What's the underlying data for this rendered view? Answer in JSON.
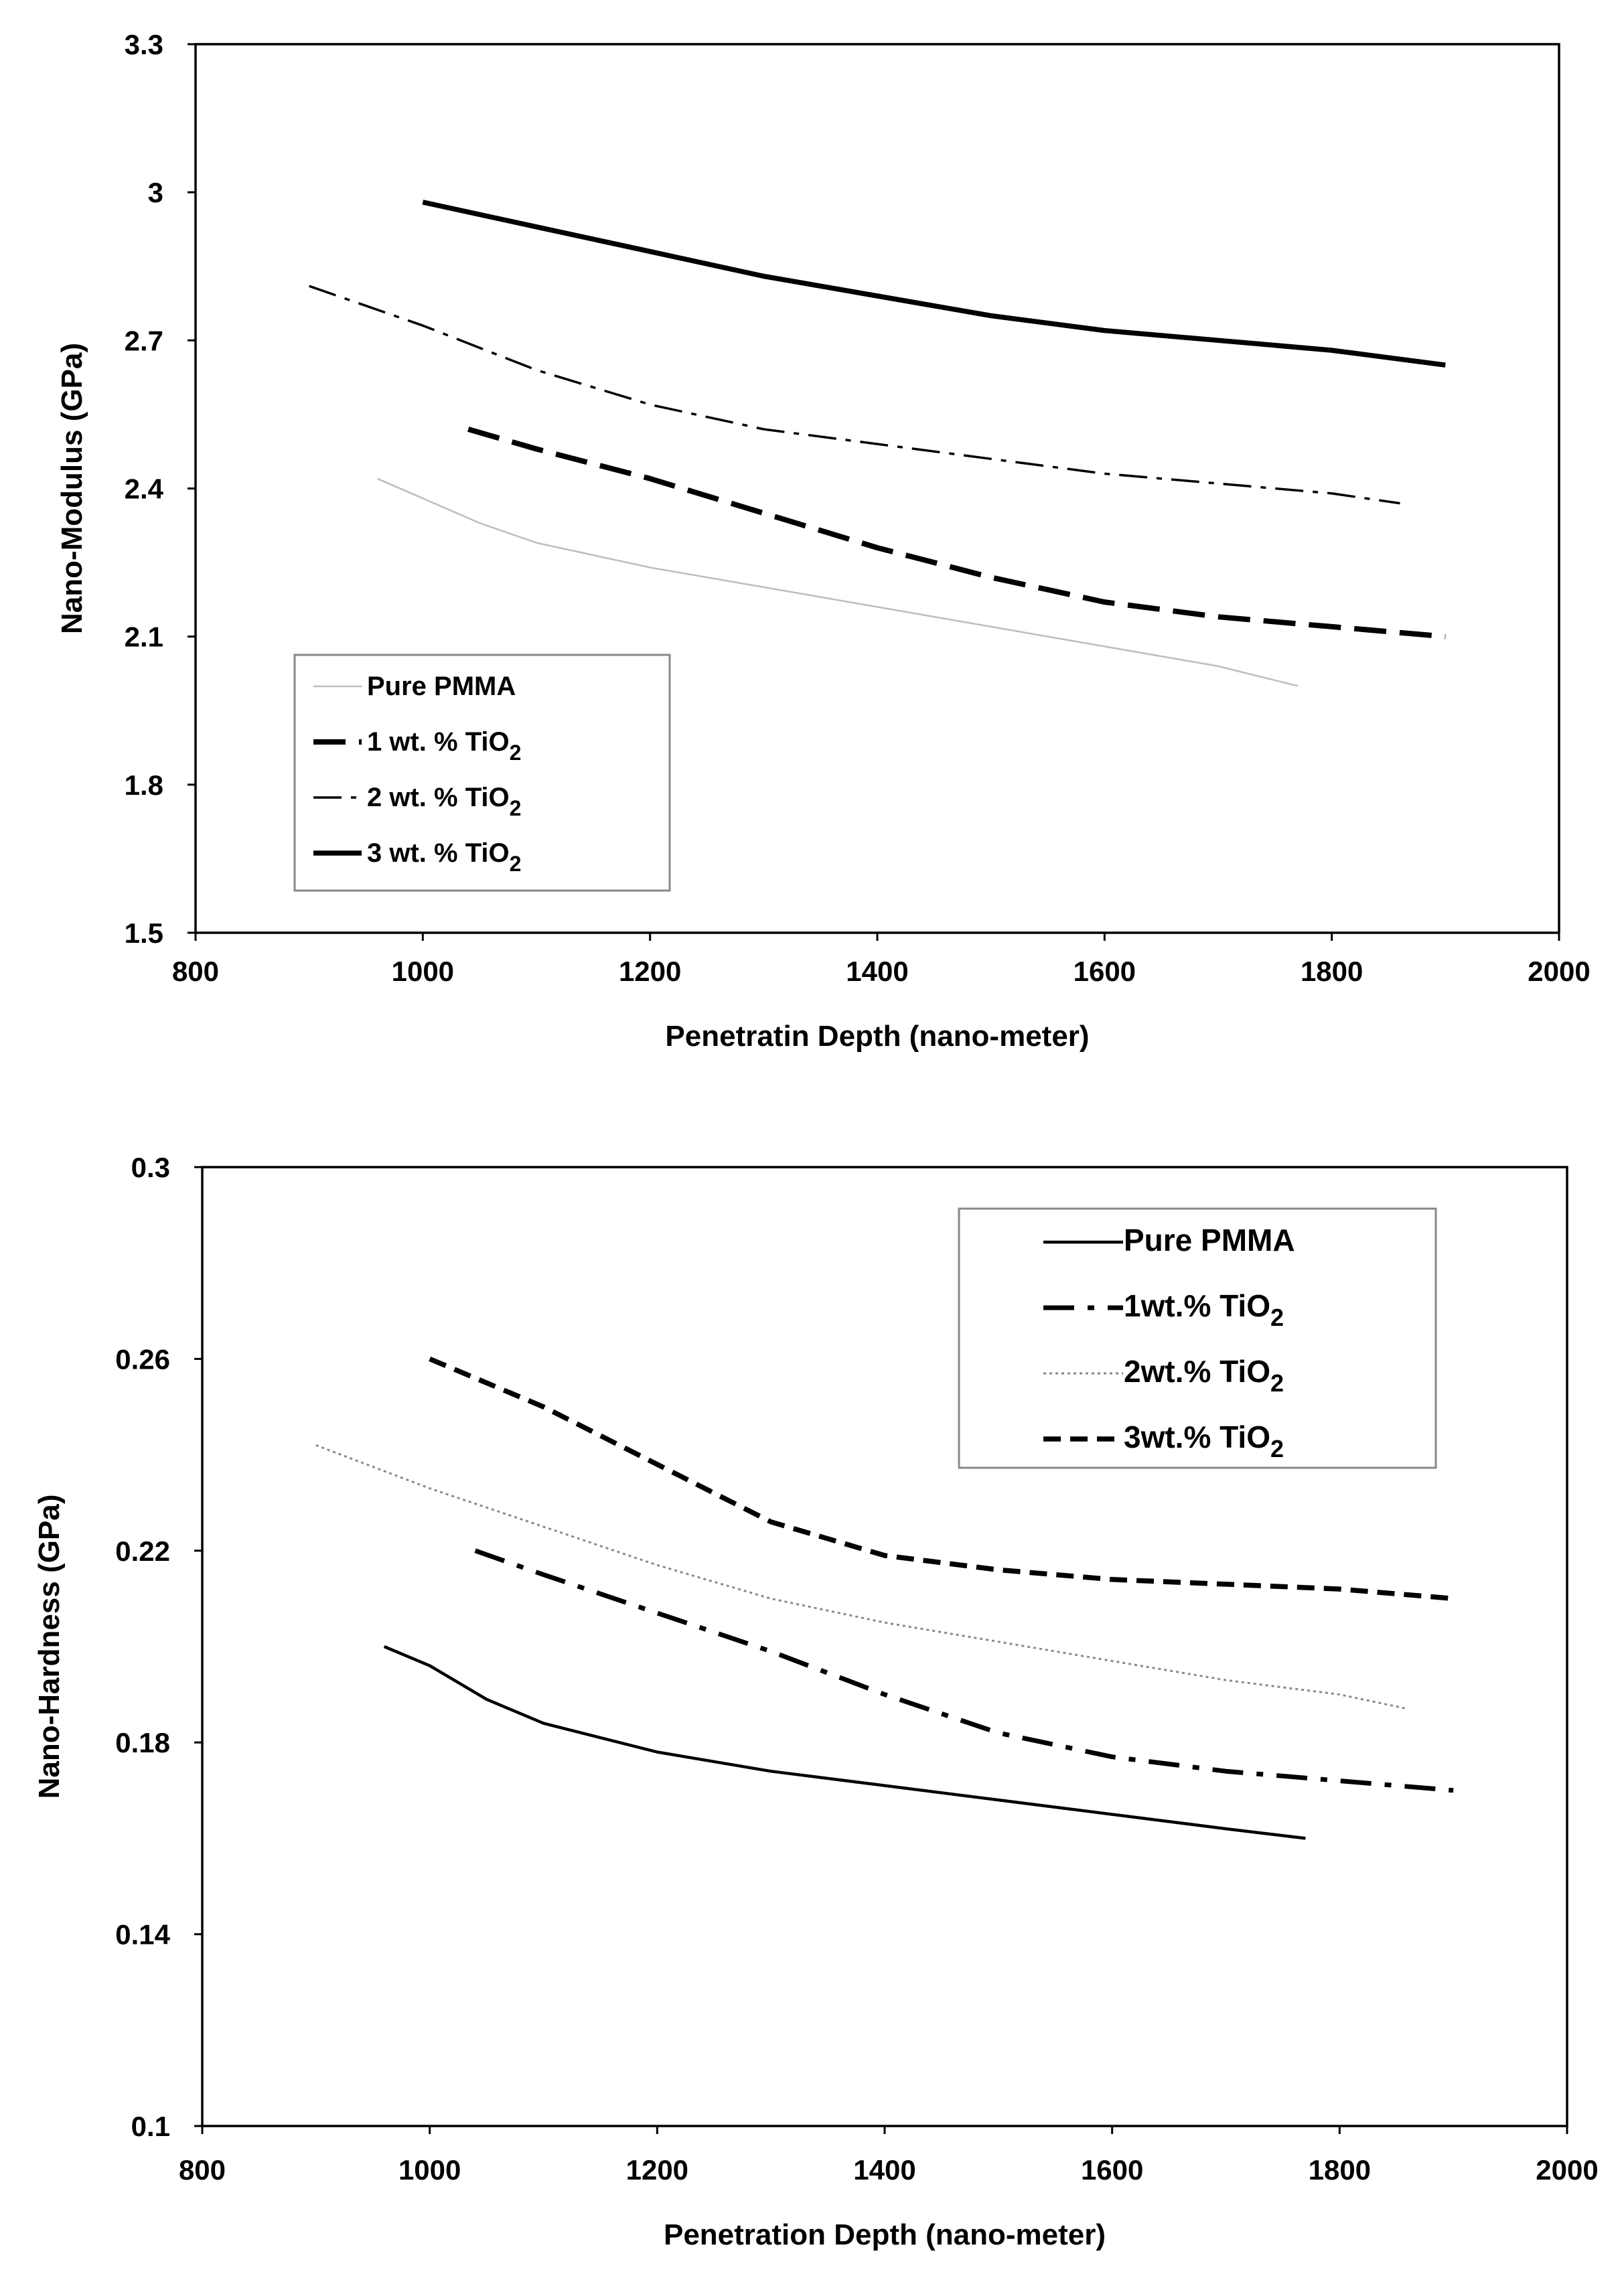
{
  "chart_data": [
    {
      "type": "line",
      "title": "",
      "xlabel": "Penetratin Depth (nano-meter)",
      "ylabel": "Nano-Modulus (GPa)",
      "xlim": [
        800,
        2000
      ],
      "ylim": [
        1.5,
        3.3
      ],
      "xticks": [
        800,
        1000,
        1200,
        1400,
        1600,
        1800,
        2000
      ],
      "yticks": [
        1.5,
        1.8,
        2.1,
        2.4,
        2.7,
        3.0,
        3.3
      ],
      "xtick_labels": [
        "800",
        "1000",
        "1200",
        "1400",
        "1600",
        "1800",
        "2000"
      ],
      "ytick_labels": [
        "1.5",
        "1.8",
        "2.1",
        "2.4",
        "2.7",
        "3",
        "3.3"
      ],
      "legend_position": "bottom-left",
      "series": [
        {
          "name": "Pure PMMA",
          "legend_prefix": "Pure PMMA",
          "legend_sub": "",
          "style": "thin-gray",
          "color": "#bdbdbd",
          "x": [
            960,
            1000,
            1050,
            1100,
            1200,
            1300,
            1400,
            1500,
            1600,
            1700,
            1770
          ],
          "y": [
            2.42,
            2.38,
            2.33,
            2.29,
            2.24,
            2.2,
            2.16,
            2.12,
            2.08,
            2.04,
            2.0
          ]
        },
        {
          "name": "1 wt. % TiO2",
          "legend_prefix": "1 wt. % TiO",
          "legend_sub": "2",
          "style": "long-dash",
          "color": "#000000",
          "x": [
            1040,
            1100,
            1200,
            1300,
            1400,
            1500,
            1600,
            1700,
            1800,
            1900
          ],
          "y": [
            2.52,
            2.48,
            2.42,
            2.35,
            2.28,
            2.22,
            2.17,
            2.14,
            2.12,
            2.1
          ]
        },
        {
          "name": "2 wt. % TiO2",
          "legend_prefix": "2 wt. % TiO",
          "legend_sub": "2",
          "style": "dash-dot",
          "color": "#000000",
          "x": [
            900,
            1000,
            1100,
            1200,
            1300,
            1400,
            1500,
            1600,
            1700,
            1800,
            1860
          ],
          "y": [
            2.81,
            2.73,
            2.64,
            2.57,
            2.52,
            2.49,
            2.46,
            2.43,
            2.41,
            2.39,
            2.37
          ]
        },
        {
          "name": "3 wt. % TiO2",
          "legend_prefix": "3 wt. % TiO",
          "legend_sub": "2",
          "style": "thick-solid",
          "color": "#000000",
          "x": [
            1000,
            1100,
            1200,
            1300,
            1400,
            1500,
            1600,
            1700,
            1800,
            1900
          ],
          "y": [
            2.98,
            2.93,
            2.88,
            2.83,
            2.79,
            2.75,
            2.72,
            2.7,
            2.68,
            2.65
          ]
        }
      ]
    },
    {
      "type": "line",
      "title": "",
      "xlabel": "Penetration Depth (nano-meter)",
      "ylabel": "Nano-Hardness (GPa)",
      "xlim": [
        800,
        2000
      ],
      "ylim": [
        0.1,
        0.3
      ],
      "xticks": [
        800,
        1000,
        1200,
        1400,
        1600,
        1800,
        2000
      ],
      "yticks": [
        0.1,
        0.14,
        0.18,
        0.22,
        0.26,
        0.3
      ],
      "xtick_labels": [
        "800",
        "1000",
        "1200",
        "1400",
        "1600",
        "1800",
        "2000"
      ],
      "ytick_labels": [
        "0.1",
        "0.14",
        "0.18",
        "0.22",
        "0.26",
        "0.3"
      ],
      "legend_position": "top-right",
      "series": [
        {
          "name": "Pure PMMA",
          "legend_prefix": "Pure PMMA",
          "legend_sub": "",
          "style": "solid",
          "color": "#000000",
          "x": [
            960,
            1000,
            1050,
            1100,
            1200,
            1300,
            1400,
            1500,
            1600,
            1700,
            1770
          ],
          "y": [
            0.2,
            0.196,
            0.189,
            0.184,
            0.178,
            0.174,
            0.171,
            0.168,
            0.165,
            0.162,
            0.16
          ]
        },
        {
          "name": "1wt.% TiO2",
          "legend_prefix": "1wt.% TiO",
          "legend_sub": "2",
          "style": "dash-dot-heavy",
          "color": "#000000",
          "x": [
            1040,
            1100,
            1200,
            1300,
            1400,
            1500,
            1600,
            1700,
            1800,
            1900
          ],
          "y": [
            0.22,
            0.215,
            0.207,
            0.199,
            0.19,
            0.182,
            0.177,
            0.174,
            0.172,
            0.17
          ]
        },
        {
          "name": "2wt.% TiO2",
          "legend_prefix": "2wt.% TiO",
          "legend_sub": "2",
          "style": "dotted",
          "color": "#888888",
          "x": [
            900,
            1000,
            1100,
            1200,
            1300,
            1400,
            1500,
            1600,
            1700,
            1800,
            1860
          ],
          "y": [
            0.242,
            0.233,
            0.225,
            0.217,
            0.21,
            0.205,
            0.201,
            0.197,
            0.193,
            0.19,
            0.187
          ]
        },
        {
          "name": "3wt.% TiO2",
          "legend_prefix": "3wt.% TiO",
          "legend_sub": "2",
          "style": "dashed-heavy",
          "color": "#000000",
          "x": [
            1000,
            1100,
            1200,
            1300,
            1400,
            1500,
            1600,
            1700,
            1800,
            1900
          ],
          "y": [
            0.26,
            0.25,
            0.238,
            0.226,
            0.219,
            0.216,
            0.214,
            0.213,
            0.212,
            0.21
          ]
        }
      ]
    }
  ]
}
